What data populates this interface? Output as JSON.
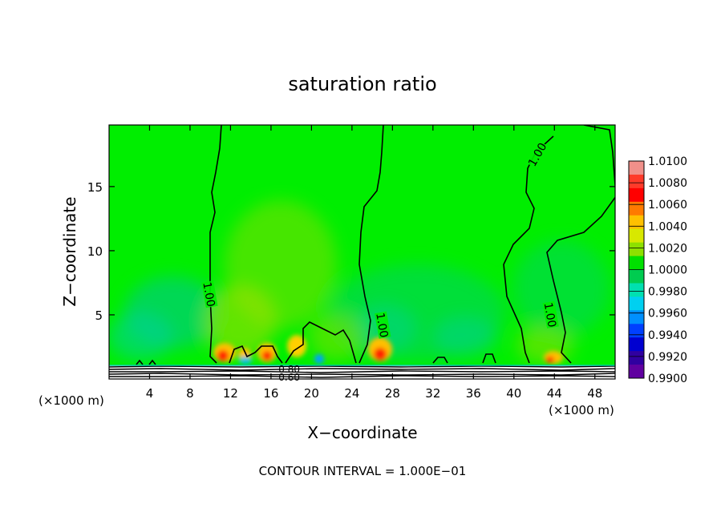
{
  "chart_data": {
    "type": "heatmap",
    "title": "saturation ratio",
    "xlabel": "X−coordinate",
    "ylabel": "Z−coordinate",
    "x_unit_left": "(×1000 m)",
    "x_unit_right": "(×1000 m)",
    "footer": "CONTOUR INTERVAL = 1.000E−01",
    "xlim": [
      0,
      50
    ],
    "ylim": [
      0,
      19.8
    ],
    "x_ticks": [
      4,
      8,
      12,
      16,
      20,
      24,
      28,
      32,
      36,
      40,
      44,
      48
    ],
    "y_ticks": [
      5,
      10,
      15
    ],
    "colorbar": {
      "labels": [
        "1.0100",
        "1.0080",
        "1.0060",
        "1.0040",
        "1.0020",
        "1.0000",
        "0.9980",
        "0.9960",
        "0.9940",
        "0.9920",
        "0.9900"
      ],
      "colors": [
        "#f0908a",
        "#ff3a2a",
        "#ff0000",
        "#ff7a00",
        "#ffc000",
        "#d8e800",
        "#8de000",
        "#00e000",
        "#00cc50",
        "#00e0b0",
        "#00d0f0",
        "#0090ff",
        "#0040ff",
        "#0000d0",
        "#3000a0",
        "#6000a0"
      ]
    },
    "contours": [
      {
        "label": "1.00",
        "level": 1.0,
        "label_x": 9.9,
        "label_y": 6.6
      },
      {
        "label": "1.00",
        "level": 1.0,
        "label_x": 27.0,
        "label_y": 4.2
      },
      {
        "label": "1.00",
        "level": 1.0,
        "label_x": 43.6,
        "label_y": 5.0
      },
      {
        "label": "1.00",
        "level": 1.0,
        "label_x": 42.3,
        "label_y": 17.5
      },
      {
        "label": "0.80",
        "level": 0.8,
        "label_x": 17.8,
        "label_y": 0.8
      },
      {
        "label": "0.60",
        "level": 0.6,
        "label_x": 17.8,
        "label_y": 0.2
      }
    ]
  }
}
